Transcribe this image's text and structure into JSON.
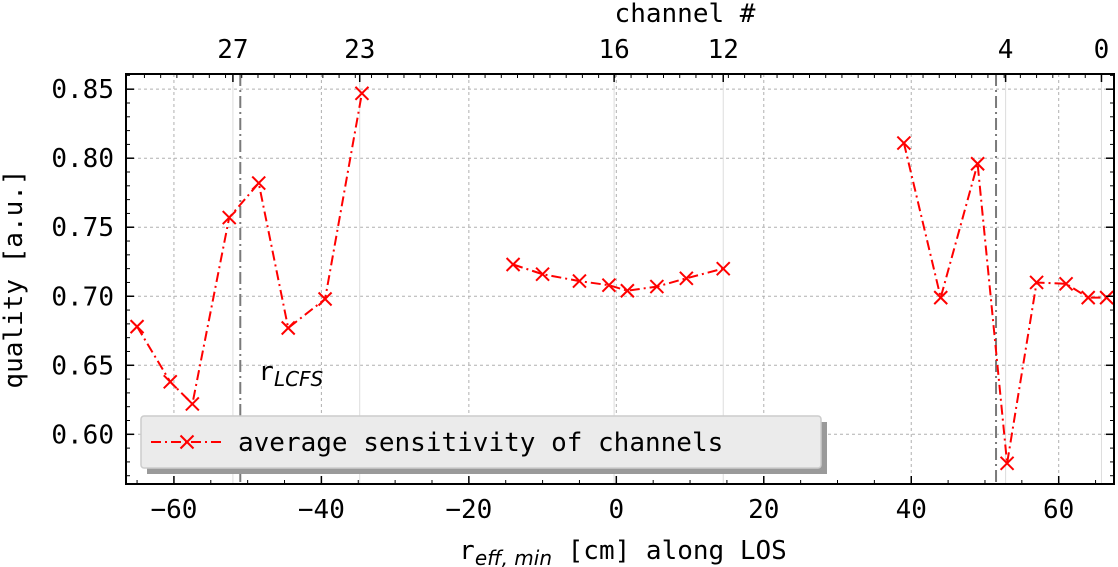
{
  "chart_data": {
    "type": "line",
    "xlabel_main": "r",
    "xlabel_sub": "eff, min",
    "xlabel_rest": " [cm] along LOS",
    "ylabel": "quality [a.u.]",
    "top_axis_label": "channel #",
    "xlim": [
      -66.5,
      67.5
    ],
    "ylim": [
      0.564,
      0.861
    ],
    "x_ticks": [
      -60,
      -40,
      -20,
      0,
      20,
      40,
      60
    ],
    "x_tick_labels": [
      "−60",
      "−40",
      "−20",
      "0",
      "20",
      "40",
      "60"
    ],
    "y_ticks": [
      0.6,
      0.65,
      0.7,
      0.75,
      0.8,
      0.85
    ],
    "y_tick_labels": [
      "0.60",
      "0.65",
      "0.70",
      "0.75",
      "0.80",
      "0.85"
    ],
    "top_ticks": [
      {
        "x": -52.0,
        "label": "27"
      },
      {
        "x": -34.8,
        "label": "23"
      },
      {
        "x": -0.3,
        "label": "16"
      },
      {
        "x": 14.5,
        "label": "12"
      },
      {
        "x": 52.8,
        "label": "4"
      },
      {
        "x": 65.8,
        "label": "0"
      }
    ],
    "vlines": [
      {
        "x": -51.0,
        "label_main": "r",
        "label_sub": "LCFS"
      },
      {
        "x": 51.5
      }
    ],
    "grid": true,
    "legend_position": "lower-left",
    "series": [
      {
        "name": "average sensitivity of channels",
        "color": "#ff0000",
        "marker": "x",
        "linestyle": "dash-dot",
        "segments": [
          [
            [
              -65.0,
              0.678
            ],
            [
              -60.5,
              0.638
            ],
            [
              -57.5,
              0.622
            ],
            [
              -52.5,
              0.757
            ],
            [
              -48.5,
              0.782
            ],
            [
              -44.5,
              0.677
            ],
            [
              -39.5,
              0.698
            ],
            [
              -34.5,
              0.847
            ]
          ],
          [
            [
              -14.0,
              0.723
            ],
            [
              -10.0,
              0.716
            ],
            [
              -5.0,
              0.711
            ],
            [
              -1.0,
              0.708
            ],
            [
              1.5,
              0.704
            ],
            [
              5.5,
              0.707
            ],
            [
              9.5,
              0.713
            ],
            [
              14.5,
              0.72
            ]
          ],
          [
            [
              39.0,
              0.811
            ],
            [
              44.0,
              0.699
            ],
            [
              49.0,
              0.796
            ],
            [
              53.0,
              0.579
            ],
            [
              57.0,
              0.71
            ],
            [
              61.0,
              0.709
            ],
            [
              64.0,
              0.699
            ],
            [
              66.5,
              0.699
            ]
          ]
        ]
      }
    ]
  }
}
